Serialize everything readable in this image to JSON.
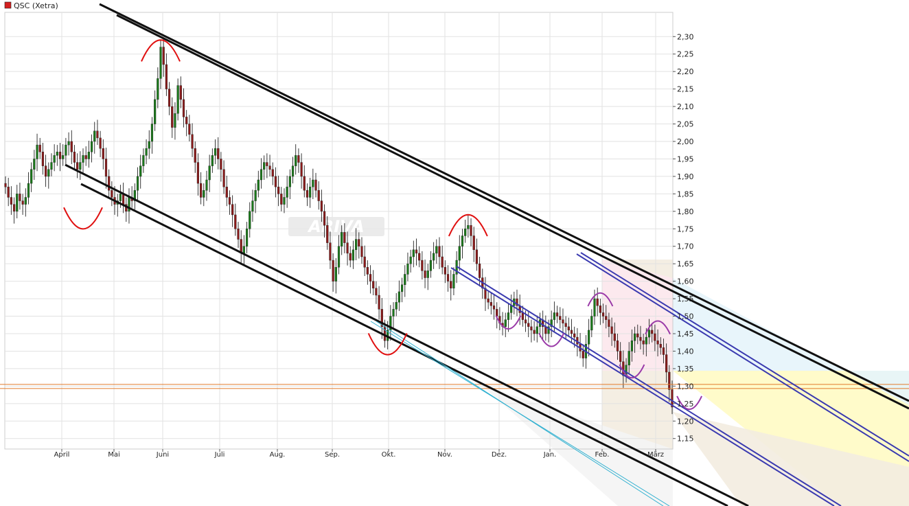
{
  "chart_data": {
    "type": "candlestick",
    "legend": {
      "label": "QSC (Xetra)",
      "color": "#d42020"
    },
    "y_axis": {
      "ticks": [
        "2,30",
        "2,25",
        "2,20",
        "2,15",
        "2,10",
        "2,05",
        "2,00",
        "1,95",
        "1,90",
        "1,85",
        "1,80",
        "1,75",
        "1,70",
        "1,65",
        "1,60",
        "1,55",
        "1,50",
        "1,45",
        "1,40",
        "1,35",
        "1,30",
        "1,25",
        "1,20",
        "1,15"
      ],
      "min": 1.12,
      "max": 2.33
    },
    "x_axis": {
      "ticks": [
        "April",
        "Mai",
        "Juni",
        "Juli",
        "Aug.",
        "Sep.",
        "Okt.",
        "Nov.",
        "Dez.",
        "Jan.",
        "Feb.",
        "März"
      ]
    },
    "watermark": "ARIVA",
    "colors": {
      "up": "#1a7a1a",
      "down": "#8b1a1a",
      "channel": "#111111",
      "inner_channel": "#3a3ab0",
      "marker_red": "#e01010",
      "marker_purple": "#9a3aa8",
      "horizontal": "#e07a2a",
      "grid": "#dddddd"
    },
    "horizontal_levels": [
      1.305,
      1.293
    ],
    "closes": [
      1.87,
      1.84,
      1.82,
      1.8,
      1.85,
      1.83,
      1.82,
      1.84,
      1.88,
      1.92,
      1.95,
      1.99,
      1.97,
      1.93,
      1.9,
      1.92,
      1.94,
      1.96,
      1.97,
      1.95,
      1.96,
      1.99,
      2.0,
      1.97,
      1.94,
      1.92,
      1.94,
      1.96,
      1.95,
      1.97,
      2.0,
      2.03,
      2.01,
      1.98,
      1.95,
      1.9,
      1.86,
      1.84,
      1.82,
      1.83,
      1.85,
      1.82,
      1.8,
      1.84,
      1.83,
      1.86,
      1.9,
      1.93,
      1.96,
      1.98,
      2.0,
      2.05,
      2.12,
      2.18,
      2.27,
      2.22,
      2.15,
      2.1,
      2.04,
      2.08,
      2.16,
      2.12,
      2.07,
      2.05,
      2.02,
      1.98,
      1.94,
      1.88,
      1.84,
      1.86,
      1.89,
      1.93,
      1.96,
      1.98,
      1.95,
      1.92,
      1.87,
      1.84,
      1.82,
      1.79,
      1.75,
      1.72,
      1.68,
      1.7,
      1.75,
      1.8,
      1.83,
      1.86,
      1.89,
      1.92,
      1.94,
      1.93,
      1.92,
      1.9,
      1.87,
      1.85,
      1.82,
      1.84,
      1.87,
      1.9,
      1.93,
      1.96,
      1.94,
      1.9,
      1.86,
      1.84,
      1.87,
      1.89,
      1.86,
      1.83,
      1.8,
      1.76,
      1.71,
      1.66,
      1.6,
      1.64,
      1.7,
      1.74,
      1.71,
      1.68,
      1.66,
      1.69,
      1.72,
      1.7,
      1.67,
      1.64,
      1.62,
      1.6,
      1.58,
      1.56,
      1.52,
      1.47,
      1.43,
      1.46,
      1.5,
      1.52,
      1.54,
      1.57,
      1.59,
      1.62,
      1.65,
      1.67,
      1.69,
      1.68,
      1.66,
      1.63,
      1.61,
      1.63,
      1.66,
      1.68,
      1.7,
      1.67,
      1.64,
      1.62,
      1.6,
      1.58,
      1.62,
      1.66,
      1.7,
      1.73,
      1.75,
      1.76,
      1.73,
      1.69,
      1.65,
      1.61,
      1.58,
      1.55,
      1.54,
      1.53,
      1.52,
      1.5,
      1.48,
      1.47,
      1.49,
      1.51,
      1.53,
      1.55,
      1.53,
      1.51,
      1.49,
      1.48,
      1.47,
      1.46,
      1.45,
      1.47,
      1.49,
      1.47,
      1.45,
      1.47,
      1.49,
      1.51,
      1.5,
      1.49,
      1.48,
      1.47,
      1.46,
      1.45,
      1.44,
      1.42,
      1.4,
      1.38,
      1.42,
      1.46,
      1.5,
      1.55,
      1.53,
      1.51,
      1.5,
      1.49,
      1.47,
      1.45,
      1.43,
      1.4,
      1.37,
      1.33,
      1.36,
      1.4,
      1.43,
      1.45,
      1.44,
      1.43,
      1.42,
      1.44,
      1.46,
      1.45,
      1.43,
      1.42,
      1.41,
      1.39,
      1.34,
      1.29,
      1.24
    ],
    "markers": [
      {
        "color": "red",
        "type": "bottom",
        "x_index": 27,
        "y": 1.76
      },
      {
        "color": "red",
        "type": "top",
        "x_index": 54,
        "y": 2.28
      },
      {
        "color": "red",
        "type": "bottom",
        "x_index": 133,
        "y": 1.4
      },
      {
        "color": "red",
        "type": "top",
        "x_index": 161,
        "y": 1.78
      },
      {
        "color": "purple",
        "type": "bottom",
        "x_index": 175,
        "y": 1.47
      },
      {
        "color": "purple",
        "type": "bottom",
        "x_index": 190,
        "y": 1.42
      },
      {
        "color": "purple",
        "type": "top",
        "x_index": 207,
        "y": 1.56
      },
      {
        "color": "purple",
        "type": "bottom",
        "x_index": 218,
        "y": 1.33
      },
      {
        "color": "purple",
        "type": "top",
        "x_index": 227,
        "y": 1.48
      },
      {
        "color": "purple",
        "type": "bottom",
        "x_index": 238,
        "y": 1.24
      }
    ]
  }
}
